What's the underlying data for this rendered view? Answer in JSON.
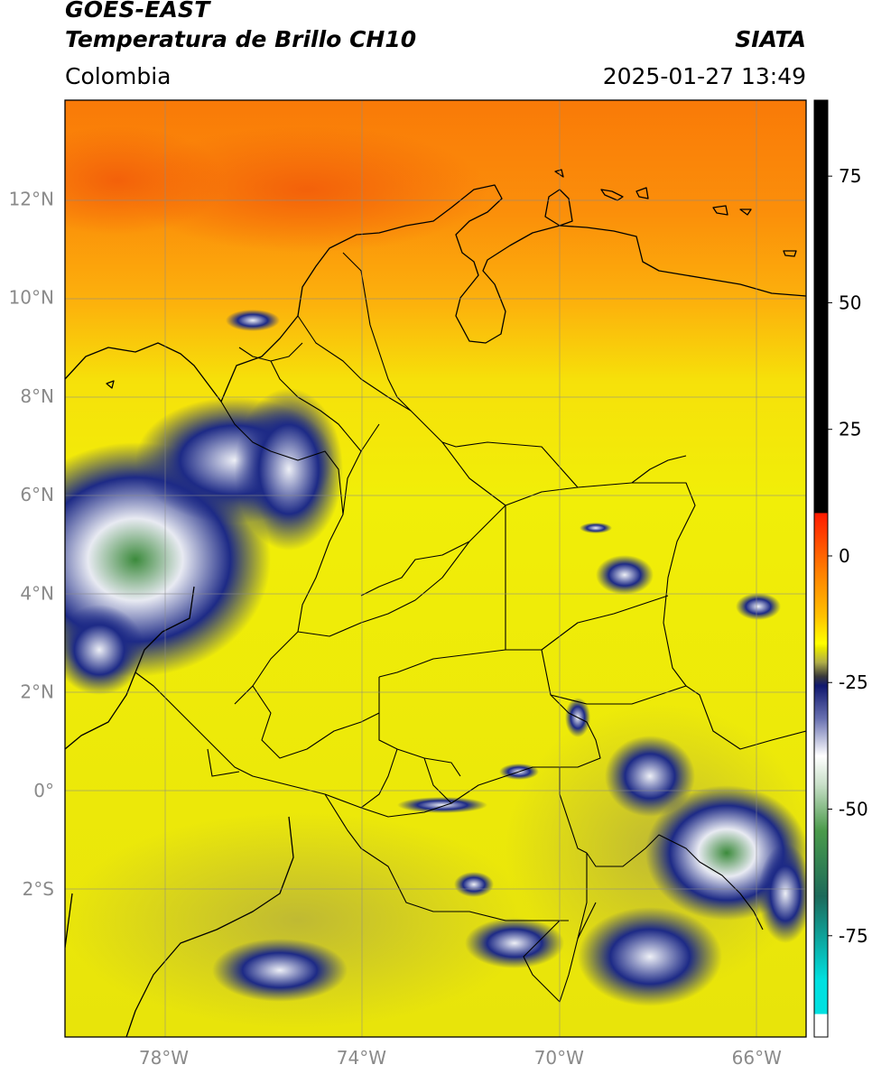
{
  "header": {
    "satellite": "GOES-EAST",
    "product": "Temperatura de Brillo CH10",
    "region": "Colombia",
    "brand": "SIATA",
    "timestamp": "2025-01-27 13:49"
  },
  "map": {
    "lon_range": [
      -80.0,
      -65.0
    ],
    "lat_range": [
      -5.0,
      14.0
    ],
    "lon_ticks": [
      "78°W",
      "74°W",
      "70°W",
      "66°W"
    ],
    "lat_ticks": [
      "12°N",
      "10°N",
      "8°N",
      "6°N",
      "4°N",
      "2°N",
      "0°",
      "2°S"
    ],
    "gridlines": true
  },
  "colorbar": {
    "range": [
      -95,
      90
    ],
    "tick_labels": [
      "75",
      "50",
      "25",
      "0",
      "-25",
      "-50",
      "-75"
    ],
    "colors": {
      "warm_black": "#000000",
      "red": "#ff1a00",
      "orange": "#ff8800",
      "yellow": "#ffff00",
      "olive": "#8a8a40",
      "navy": "#10186e",
      "white": "#ffffff",
      "green": "#2f8a2f",
      "cyan": "#00e0e0"
    }
  },
  "palette": {
    "sea_north": "#fa8c0a",
    "land_yellow": "#f2ee08",
    "cloud_navy": "#1a237e",
    "cloud_white": "#f0f0f8",
    "cloud_green": "#3c8c3c",
    "border": "#000000",
    "grid": "#9a9a9a",
    "tick_text": "#8a8a8a"
  }
}
